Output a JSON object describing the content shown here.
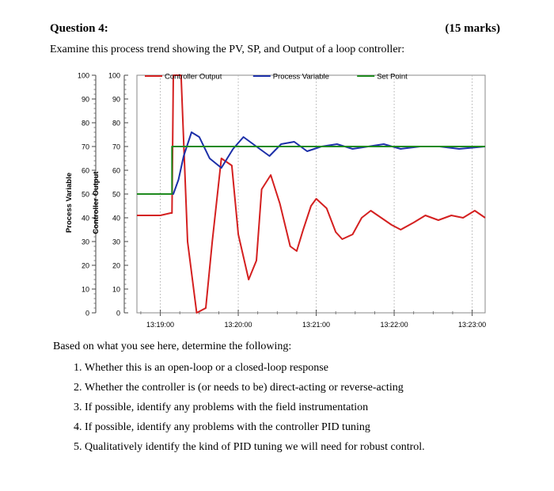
{
  "question": {
    "title": "Question 4:",
    "marks": "(15 marks)",
    "intro": "Examine this process trend showing the PV, SP, and Output of a loop controller:",
    "follow_up": "Based on what you see here, determine the following:",
    "tasks": [
      "Whether this is an open-loop or a closed-loop response",
      "Whether the controller is (or needs to be) direct-acting or reverse-acting",
      "If possible, identify any problems with the field instrumentation",
      "If possible, identify any problems with the controller PID tuning",
      "Qualitatively identify the kind of PID tuning we will need for robust control."
    ]
  },
  "chart_data": {
    "type": "line",
    "title": "",
    "ylabel_left": "Process Variable",
    "ylabel_right": "Controller Output",
    "ylim": [
      0,
      100
    ],
    "yticks": [
      0,
      10,
      20,
      30,
      40,
      50,
      60,
      70,
      80,
      90,
      100
    ],
    "xlim": [
      "13:18:42",
      "13:23:10"
    ],
    "xtick_labels": [
      "13:19:00",
      "13:20:00",
      "13:21:00",
      "13:22:00",
      "13:23:00"
    ],
    "legend_position": "top",
    "grid": "vertical dotted at time ticks",
    "series": [
      {
        "name": "Controller Output",
        "color": "#d42020",
        "x": [
          "13:18:42",
          "13:19:00",
          "13:19:08",
          "13:19:09",
          "13:19:10",
          "13:19:16",
          "13:19:21",
          "13:19:28",
          "13:19:35",
          "13:19:40",
          "13:19:47",
          "13:19:55",
          "13:20:00",
          "13:20:08",
          "13:20:14",
          "13:20:18",
          "13:20:25",
          "13:20:32",
          "13:20:40",
          "13:20:45",
          "13:20:50",
          "13:20:56",
          "13:21:00",
          "13:21:08",
          "13:21:15",
          "13:21:20",
          "13:21:28",
          "13:21:35",
          "13:21:42",
          "13:21:50",
          "13:21:58",
          "13:22:05",
          "13:22:15",
          "13:22:24",
          "13:22:34",
          "13:22:44",
          "13:22:53",
          "13:23:02",
          "13:23:10"
        ],
        "values": [
          41,
          41,
          42,
          42,
          100,
          100,
          30,
          0,
          2,
          30,
          65,
          62,
          33,
          14,
          22,
          52,
          58,
          46,
          28,
          26,
          35,
          45,
          48,
          44,
          34,
          31,
          33,
          40,
          43,
          40,
          37,
          35,
          38,
          41,
          39,
          41,
          40,
          43,
          40
        ]
      },
      {
        "name": "Process Variable",
        "color": "#1c2fa8",
        "x": [
          "13:18:42",
          "13:19:00",
          "13:19:09",
          "13:19:10",
          "13:19:14",
          "13:19:18",
          "13:19:24",
          "13:19:30",
          "13:19:38",
          "13:19:47",
          "13:19:56",
          "13:20:04",
          "13:20:14",
          "13:20:24",
          "13:20:33",
          "13:20:43",
          "13:20:53",
          "13:21:04",
          "13:21:16",
          "13:21:28",
          "13:21:40",
          "13:21:52",
          "13:22:05",
          "13:22:20",
          "13:22:35",
          "13:22:50",
          "13:23:10"
        ],
        "values": [
          50,
          50,
          50,
          50,
          56,
          66,
          76,
          74,
          65,
          61,
          69,
          74,
          70,
          66,
          71,
          72,
          68,
          70,
          71,
          69,
          70,
          71,
          69,
          70,
          70,
          69,
          70
        ]
      },
      {
        "name": "Set Point",
        "color": "#1e8a1e",
        "x": [
          "13:18:42",
          "13:19:09",
          "13:19:09",
          "13:23:10"
        ],
        "values": [
          50,
          50,
          70,
          70
        ]
      }
    ]
  }
}
